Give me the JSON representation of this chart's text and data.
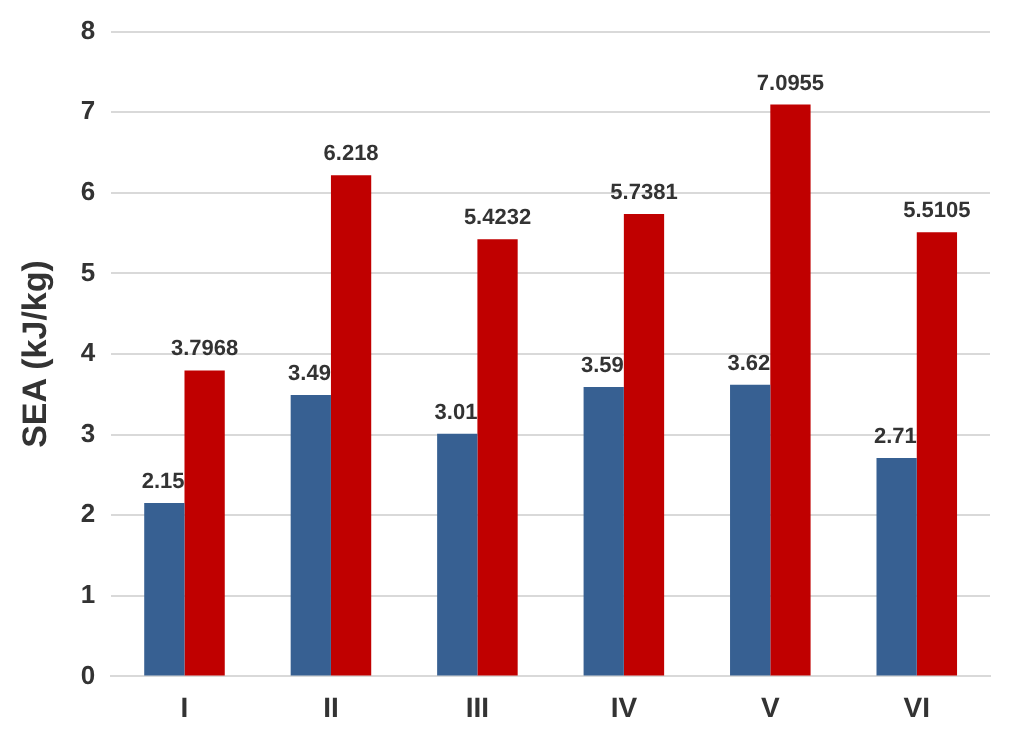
{
  "chart_data": {
    "type": "bar",
    "ylabel": "SEA (kJ/kg)",
    "categories": [
      "I",
      "II",
      "III",
      "IV",
      "V",
      "VI"
    ],
    "series": [
      {
        "color": "#376092",
        "values": [
          2.15,
          3.49,
          3.01,
          3.59,
          3.62,
          2.71
        ]
      },
      {
        "color": "#c00000",
        "values": [
          3.7968,
          6.218,
          5.4232,
          5.7381,
          7.0955,
          5.5105
        ]
      }
    ],
    "ylim": [
      0,
      8
    ],
    "yticks": [
      0,
      1,
      2,
      3,
      4,
      5,
      6,
      7,
      8
    ],
    "grid": "y",
    "data_labels": true,
    "legend": false
  }
}
